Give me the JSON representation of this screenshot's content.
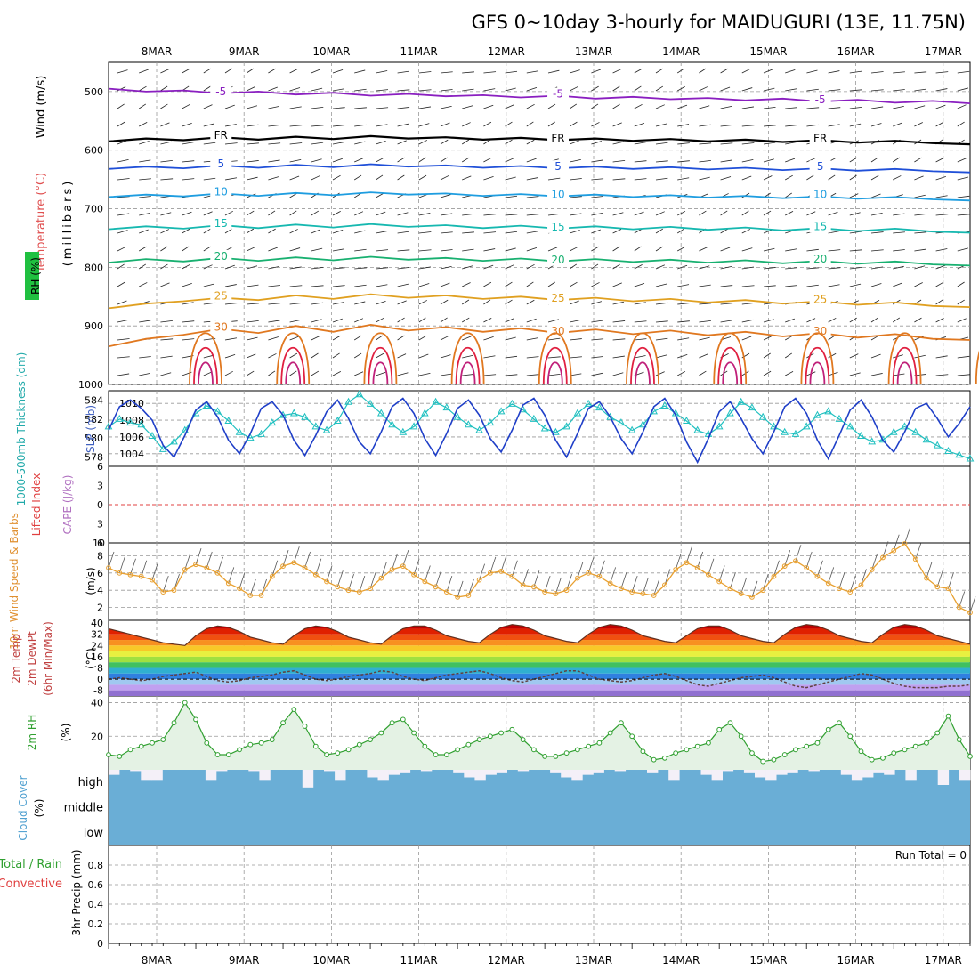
{
  "chart_data": {
    "type": "line",
    "title": "GFS 0~10day 3-hourly for MAIDUGURI (13E, 11.75N)",
    "day_labels": [
      "8MAR",
      "9MAR",
      "10MAR",
      "11MAR",
      "12MAR",
      "13MAR",
      "14MAR",
      "15MAR",
      "16MAR",
      "17MAR"
    ],
    "time_axis": {
      "start": "7MAR 15Z",
      "step_hours": 3,
      "steps": 80
    },
    "colors": {
      "temp_m5": "#8a1fc0",
      "freezing": "#000000",
      "temp_5": "#1f4fd8",
      "temp_10": "#1e9de0",
      "temp_15": "#16b8b0",
      "temp_20": "#18b070",
      "temp_25": "#e0a020",
      "temp_30": "#e07820",
      "temp_hot": "#e02040",
      "thickness": "#20c0c0",
      "slp": "#1f3fc8",
      "wind10m": "#e8a030",
      "rh": "#30a030",
      "cloud": "#6aaed6"
    },
    "panels": {
      "upper_air": {
        "labels": {
          "wind": "Wind (m/s)",
          "temperature": "Temperature (°C)",
          "rh": "RH (%)",
          "pressure": "(millibars)"
        },
        "pressure_ticks": [
          500,
          600,
          700,
          800,
          900,
          1000
        ],
        "ylim": [
          450,
          1000
        ],
        "isotherms": [
          {
            "label": "-5",
            "level_mb": [
              495,
              500,
              498,
              503,
              500,
              505,
              502,
              507,
              504,
              508,
              506,
              510,
              507,
              512,
              509,
              513,
              511,
              515,
              512,
              517,
              514,
              519,
              516,
              520
            ]
          },
          {
            "label": "FR",
            "level_mb": [
              585,
              580,
              583,
              578,
              582,
              577,
              581,
              576,
              580,
              578,
              582,
              579,
              583,
              580,
              584,
              581,
              585,
              582,
              586,
              583,
              587,
              584,
              588,
              590
            ]
          },
          {
            "label": "5",
            "level_mb": [
              632,
              628,
              631,
              626,
              630,
              625,
              629,
              624,
              628,
              626,
              630,
              627,
              631,
              628,
              632,
              629,
              633,
              630,
              634,
              631,
              635,
              632,
              636,
              638
            ]
          },
          {
            "label": "10",
            "level_mb": [
              680,
              676,
              679,
              674,
              678,
              673,
              677,
              672,
              676,
              674,
              678,
              675,
              679,
              676,
              680,
              677,
              681,
              678,
              682,
              679,
              683,
              680,
              684,
              686
            ]
          },
          {
            "label": "15",
            "level_mb": [
              735,
              730,
              734,
              728,
              733,
              727,
              732,
              726,
              731,
              728,
              733,
              729,
              734,
              730,
              735,
              731,
              736,
              732,
              737,
              733,
              738,
              734,
              739,
              741
            ]
          },
          {
            "label": "20",
            "level_mb": [
              792,
              786,
              790,
              784,
              789,
              783,
              788,
              782,
              787,
              784,
              789,
              785,
              790,
              786,
              791,
              787,
              792,
              788,
              793,
              789,
              794,
              790,
              795,
              797
            ]
          },
          {
            "label": "25",
            "level_mb": [
              870,
              862,
              858,
              852,
              856,
              848,
              854,
              846,
              852,
              848,
              854,
              850,
              856,
              852,
              858,
              854,
              860,
              856,
              862,
              858,
              864,
              860,
              866,
              868
            ]
          },
          {
            "label": "30",
            "level_mb": [
              935,
              922,
              915,
              905,
              912,
              900,
              910,
              898,
              908,
              902,
              910,
              904,
              912,
              906,
              914,
              908,
              916,
              910,
              918,
              912,
              920,
              914,
              922,
              924
            ]
          }
        ],
        "contour_labels": [
          "-5",
          "FR",
          "5",
          "10",
          "15",
          "20",
          "25",
          "30"
        ]
      },
      "thickness_slp": {
        "labels": {
          "left": "1000-500mb Thickness (dm)",
          "right": "SLP (mb)"
        },
        "thickness_ticks": [
          578,
          580,
          582,
          584
        ],
        "thickness_ylim": [
          577,
          585
        ],
        "slp_ticks": [
          1004,
          1006,
          1008,
          1010
        ],
        "slp_ylim": [
          1002.5,
          1011.5
        ],
        "thickness": [
          581.2,
          582.0,
          581.6,
          581.4,
          580.2,
          578.8,
          579.6,
          580.8,
          582.6,
          583.4,
          582.8,
          581.8,
          580.6,
          580.0,
          580.4,
          581.6,
          582.4,
          582.6,
          582.2,
          581.2,
          580.8,
          581.8,
          583.8,
          584.6,
          583.6,
          582.6,
          581.4,
          580.6,
          581.2,
          582.6,
          583.8,
          583.2,
          582.2,
          581.4,
          580.8,
          581.6,
          582.8,
          583.6,
          583.0,
          582.0,
          581.0,
          580.6,
          581.2,
          582.6,
          583.6,
          583.2,
          582.2,
          581.6,
          580.8,
          581.4,
          582.8,
          583.4,
          582.6,
          581.8,
          580.8,
          580.4,
          581.2,
          582.6,
          583.8,
          583.2,
          582.2,
          581.2,
          580.6,
          580.4,
          581.2,
          582.4,
          582.8,
          582.0,
          581.2,
          580.2,
          579.6,
          579.8,
          580.6,
          581.2,
          580.6,
          579.8,
          579.2,
          578.6,
          578.2,
          577.8
        ],
        "slp": [
          1006.8,
          1009.6,
          1010.4,
          1009.4,
          1008.0,
          1005.0,
          1003.6,
          1006.2,
          1009.2,
          1010.2,
          1008.4,
          1005.6,
          1004.0,
          1006.4,
          1009.4,
          1010.2,
          1008.6,
          1005.6,
          1003.8,
          1006.2,
          1009.0,
          1010.4,
          1008.2,
          1005.4,
          1004.0,
          1006.6,
          1009.6,
          1010.6,
          1008.8,
          1005.8,
          1003.8,
          1006.4,
          1009.4,
          1010.4,
          1008.6,
          1005.8,
          1004.2,
          1006.8,
          1009.8,
          1010.6,
          1008.6,
          1005.6,
          1003.6,
          1006.4,
          1009.4,
          1010.2,
          1008.4,
          1005.8,
          1004.0,
          1006.6,
          1009.6,
          1010.6,
          1008.6,
          1005.4,
          1003.0,
          1005.8,
          1009.0,
          1010.2,
          1008.2,
          1005.8,
          1004.0,
          1006.6,
          1009.6,
          1010.6,
          1008.8,
          1005.6,
          1003.4,
          1006.2,
          1009.2,
          1010.4,
          1008.4,
          1005.6,
          1004.2,
          1006.6,
          1009.4,
          1010.0,
          1008.2,
          1006.0,
          1007.6,
          1009.6
        ]
      },
      "lifted_cape": {
        "labels": {
          "left": "Lifted Index",
          "right": "CAPE (J/kg)"
        },
        "li_ticks": [
          "-6",
          "-3",
          "0",
          "3",
          "6"
        ],
        "cape_ticks": [
          "10"
        ],
        "li_ylim": [
          -6,
          6
        ]
      },
      "wind10m": {
        "labels": {
          "left": "10m Wind Speed & Barbs",
          "unit": "(m/s)"
        },
        "ticks": [
          2,
          4,
          6,
          8
        ],
        "ylim": [
          0.5,
          9.5
        ],
        "speed": [
          6.6,
          6.0,
          5.8,
          5.6,
          5.2,
          3.8,
          4.0,
          6.4,
          7.0,
          6.6,
          6.0,
          4.8,
          4.2,
          3.4,
          3.4,
          5.6,
          6.8,
          7.2,
          6.6,
          5.8,
          5.0,
          4.4,
          4.0,
          3.8,
          4.2,
          5.4,
          6.4,
          6.8,
          5.8,
          5.0,
          4.4,
          3.8,
          3.2,
          3.4,
          5.2,
          6.0,
          6.2,
          5.6,
          4.6,
          4.4,
          3.8,
          3.6,
          4.0,
          5.4,
          6.0,
          5.6,
          4.8,
          4.2,
          3.8,
          3.6,
          3.4,
          4.6,
          6.4,
          7.2,
          6.6,
          5.8,
          5.0,
          4.2,
          3.6,
          3.2,
          4.0,
          5.6,
          6.8,
          7.4,
          6.6,
          5.6,
          4.8,
          4.2,
          3.8,
          4.6,
          6.4,
          7.8,
          8.6,
          9.4,
          7.6,
          5.4,
          4.4,
          4.2,
          2.0,
          1.4
        ],
        "barb_dir_deg": 45
      },
      "temp2m": {
        "labels": {
          "left": "2m Temp",
          "mid": "2m DewPt",
          "right": "(6hr Min/Max)",
          "unit": "(°C)"
        },
        "ticks": [
          "40",
          "32",
          "24",
          "16",
          "8",
          "0",
          "-8"
        ],
        "ylim": [
          -12,
          42
        ],
        "temp": [
          36,
          34,
          32,
          30,
          28,
          26,
          25,
          24,
          31,
          36,
          38,
          37,
          34,
          30,
          28,
          26,
          25,
          31,
          36,
          38,
          37,
          34,
          30,
          28,
          26,
          25,
          31,
          36,
          38,
          38,
          35,
          31,
          29,
          27,
          26,
          32,
          37,
          39,
          38,
          35,
          31,
          29,
          27,
          26,
          32,
          37,
          39,
          38,
          35,
          31,
          29,
          27,
          26,
          31,
          36,
          38,
          38,
          35,
          31,
          29,
          27,
          26,
          32,
          37,
          39,
          38,
          35,
          31,
          29,
          27,
          26,
          32,
          37,
          39,
          38,
          35,
          31,
          29,
          27,
          25
        ],
        "dewpoint": [
          0,
          1,
          0,
          -1,
          0,
          2,
          3,
          4,
          5,
          2,
          -1,
          -2,
          -1,
          1,
          2,
          3,
          5,
          6,
          3,
          0,
          -1,
          0,
          2,
          3,
          4,
          6,
          5,
          2,
          0,
          -1,
          1,
          3,
          4,
          5,
          6,
          4,
          1,
          -1,
          -2,
          0,
          2,
          4,
          6,
          6,
          3,
          0,
          -1,
          -2,
          -1,
          1,
          3,
          4,
          2,
          -1,
          -4,
          -5,
          -3,
          -1,
          1,
          2,
          3,
          1,
          -2,
          -5,
          -6,
          -4,
          -2,
          0,
          2,
          4,
          3,
          0,
          -3,
          -5,
          -6,
          -6,
          -6,
          -5,
          -5,
          -4
        ]
      },
      "rh2m": {
        "labels": {
          "left": "2m RH",
          "unit": "(%)"
        },
        "ticks": [
          20,
          40
        ],
        "ylim": [
          0,
          44
        ],
        "rh": [
          9,
          8,
          12,
          14,
          16,
          18,
          28,
          40,
          30,
          16,
          9,
          9,
          12,
          15,
          16,
          18,
          28,
          36,
          26,
          14,
          9,
          10,
          12,
          15,
          18,
          22,
          28,
          30,
          22,
          14,
          9,
          9,
          12,
          15,
          18,
          20,
          22,
          24,
          18,
          12,
          8,
          8,
          10,
          12,
          14,
          16,
          22,
          28,
          20,
          11,
          6,
          7,
          10,
          12,
          14,
          16,
          24,
          28,
          20,
          10,
          5,
          6,
          9,
          12,
          14,
          16,
          24,
          28,
          20,
          11,
          6,
          7,
          10,
          12,
          14,
          16,
          22,
          32,
          18,
          8
        ]
      },
      "cloud": {
        "labels": {
          "left": "Cloud Cover",
          "unit": "(%)",
          "high": "high",
          "middle": "middle",
          "low": "low"
        },
        "high_cover_pct": [
          80,
          100,
          95,
          60,
          60,
          100,
          100,
          100,
          100,
          60,
          95,
          100,
          100,
          95,
          60,
          100,
          100,
          100,
          30,
          100,
          95,
          60,
          100,
          100,
          70,
          60,
          80,
          90,
          100,
          95,
          100,
          100,
          90,
          70,
          60,
          80,
          90,
          100,
          95,
          100,
          100,
          90,
          70,
          60,
          80,
          90,
          100,
          95,
          100,
          100,
          90,
          100,
          60,
          100,
          100,
          80,
          60,
          95,
          100,
          90,
          70,
          60,
          80,
          90,
          100,
          95,
          100,
          100,
          80,
          60,
          70,
          90,
          80,
          100,
          60,
          100,
          100,
          40,
          100,
          60
        ]
      },
      "precip": {
        "labels": {
          "left": "3hr Precip (mm)",
          "total": "Total / Rain",
          "convective": "Convective",
          "run_total": "Run Total = 0"
        },
        "ticks": [
          "0",
          "0.2",
          "0.4",
          "0.6",
          "0.8"
        ],
        "ylim": [
          0,
          1
        ],
        "values": []
      }
    }
  }
}
